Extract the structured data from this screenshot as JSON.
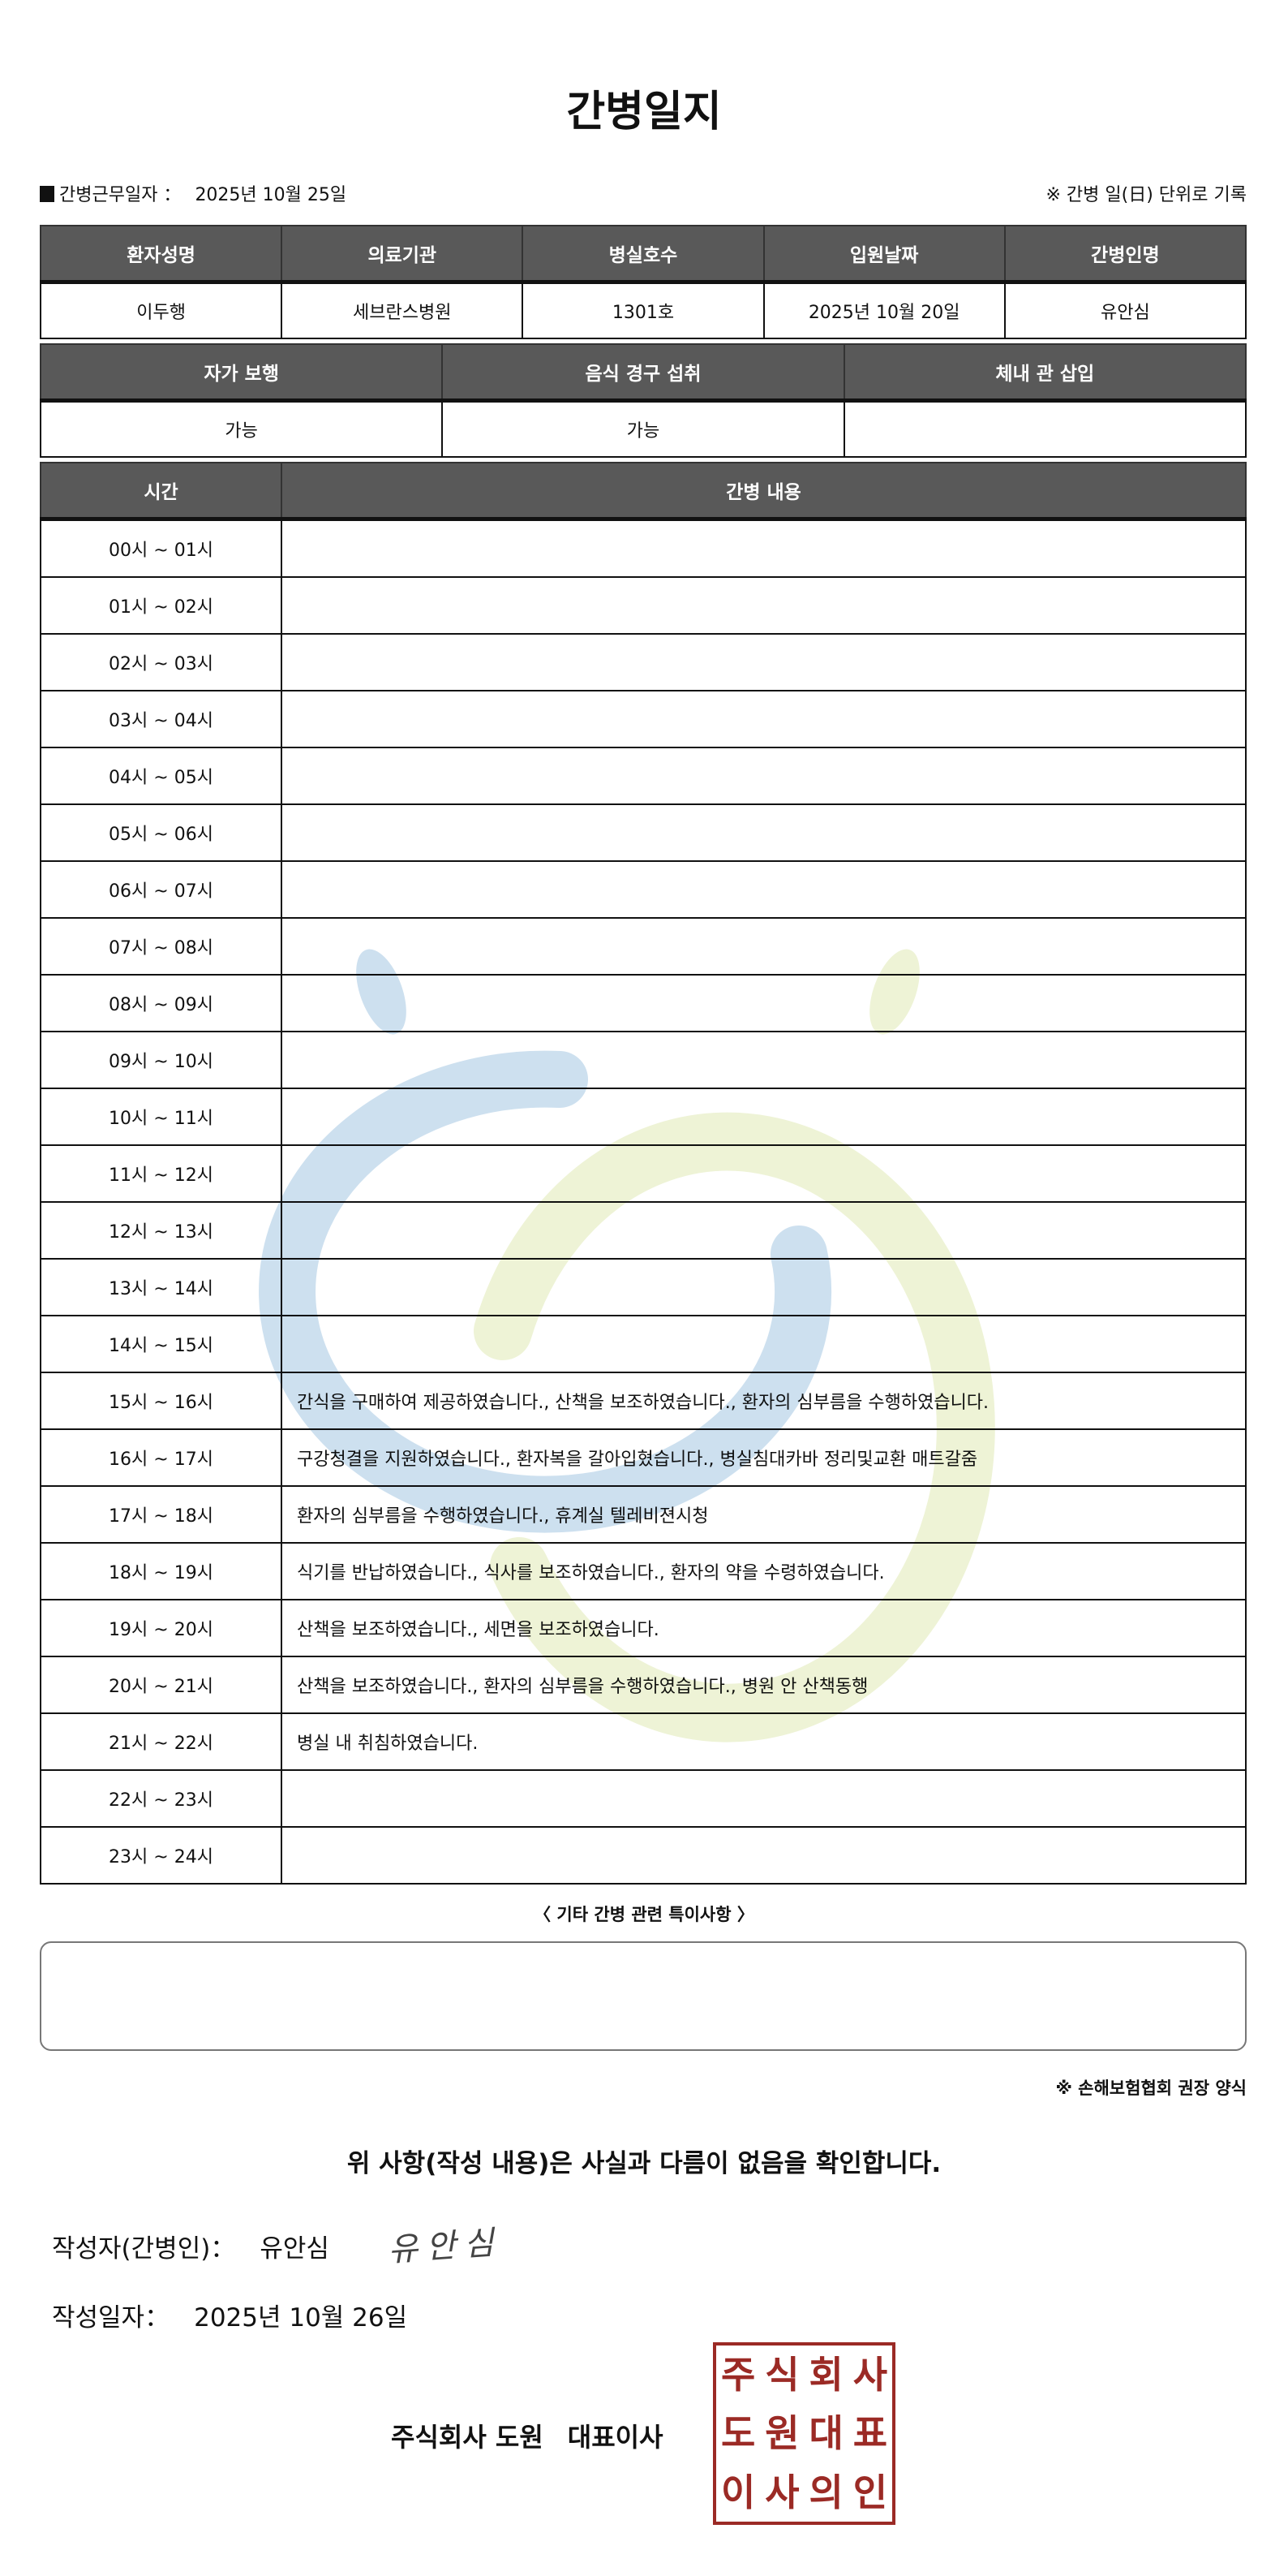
{
  "title": "간병일지",
  "work_date_label": "간병근무일자 ：",
  "work_date": "2025년 10월 25일",
  "record_note": "※ 간병 일(日) 단위로 기록",
  "patient_table": {
    "headers": [
      "환자성명",
      "의료기관",
      "병실호수",
      "입원날짜",
      "간병인명"
    ],
    "values": [
      "이두행",
      "세브란스병원",
      "1301호",
      "2025년 10월 20일",
      "유안심"
    ]
  },
  "status_table": {
    "headers": [
      "자가 보행",
      "음식 경구 섭취",
      "체내 관 삽입"
    ],
    "values": [
      "가능",
      "가능",
      ""
    ]
  },
  "log_table": {
    "headers": [
      "시간",
      "간병 내용"
    ],
    "rows": [
      {
        "time": "00시 ~ 01시",
        "content": ""
      },
      {
        "time": "01시 ~ 02시",
        "content": ""
      },
      {
        "time": "02시 ~ 03시",
        "content": ""
      },
      {
        "time": "03시 ~ 04시",
        "content": ""
      },
      {
        "time": "04시 ~ 05시",
        "content": ""
      },
      {
        "time": "05시 ~ 06시",
        "content": ""
      },
      {
        "time": "06시 ~ 07시",
        "content": ""
      },
      {
        "time": "07시 ~ 08시",
        "content": ""
      },
      {
        "time": "08시 ~ 09시",
        "content": ""
      },
      {
        "time": "09시 ~ 10시",
        "content": ""
      },
      {
        "time": "10시 ~ 11시",
        "content": ""
      },
      {
        "time": "11시 ~ 12시",
        "content": ""
      },
      {
        "time": "12시 ~ 13시",
        "content": ""
      },
      {
        "time": "13시 ~ 14시",
        "content": ""
      },
      {
        "time": "14시 ~ 15시",
        "content": ""
      },
      {
        "time": "15시 ~ 16시",
        "content": "간식을 구매하여 제공하였습니다., 산책을 보조하였습니다., 환자의 심부름을 수행하였습니다."
      },
      {
        "time": "16시 ~ 17시",
        "content": "구강청결을 지원하였습니다., 환자복을 갈아입혔습니다., 병실침대카바 정리및교환 매트갈줌"
      },
      {
        "time": "17시 ~ 18시",
        "content": "환자의 심부름을 수행하였습니다., 휴계실 텔레비젼시청"
      },
      {
        "time": "18시 ~ 19시",
        "content": "식기를 반납하였습니다., 식사를 보조하였습니다., 환자의 약을 수령하였습니다."
      },
      {
        "time": "19시 ~ 20시",
        "content": "산책을 보조하였습니다., 세면을 보조하였습니다."
      },
      {
        "time": "20시 ~ 21시",
        "content": "산책을 보조하였습니다., 환자의 심부름을 수행하였습니다., 병원 안 산책동행"
      },
      {
        "time": "21시 ~ 22시",
        "content": "병실 내 취침하였습니다."
      },
      {
        "time": "22시 ~ 23시",
        "content": ""
      },
      {
        "time": "23시 ~ 24시",
        "content": ""
      }
    ]
  },
  "special_notes_label": "〈 기타 간병 관련 특이사항 〉",
  "special_notes": "",
  "recommend_note": "※ 손해보험협회 권장 양식",
  "confirmation": "위 사항(작성 내용)은 사실과 다름이 없음을 확인합니다.",
  "writer_label": "작성자(간병인)：",
  "writer_name": "유안심",
  "signature": "유안심",
  "written_date_label": "작성일자：",
  "written_date": "2025년 10월 26일",
  "company": "주식회사 도원",
  "ceo_title": "대표이사",
  "stamp_text": [
    "주",
    "식",
    "회",
    "사",
    "도",
    "원",
    "대",
    "표",
    "이",
    "사",
    "의",
    "인"
  ],
  "colors": {
    "header_bg": "#595959",
    "stamp": "#9b2a25",
    "watermark_blue": "#cde0ef",
    "watermark_green": "#eef3d6"
  }
}
